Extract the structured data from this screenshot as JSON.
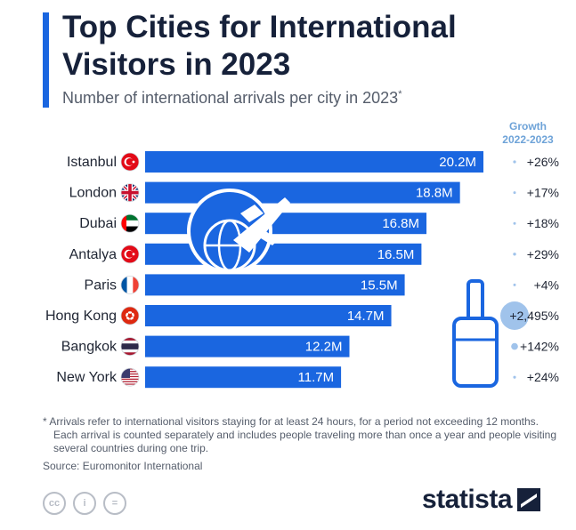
{
  "title": "Top Cities for International Visitors in 2023",
  "subtitle": "Number of international arrivals per city in 2023",
  "subtitle_marker": "*",
  "growth_header": [
    "Growth",
    "2022-2023"
  ],
  "chart_data": {
    "type": "bar",
    "orientation": "horizontal",
    "categories": [
      "Istanbul",
      "London",
      "Dubai",
      "Antalya",
      "Paris",
      "Hong Kong",
      "Bangkok",
      "New York"
    ],
    "values": [
      20.2,
      18.8,
      16.8,
      16.5,
      15.5,
      14.7,
      12.2,
      11.7
    ],
    "value_labels": [
      "20.2M",
      "18.8M",
      "16.8M",
      "16.5M",
      "15.5M",
      "14.7M",
      "12.2M",
      "11.7M"
    ],
    "growth": [
      26,
      17,
      18,
      29,
      4,
      2495,
      142,
      24
    ],
    "growth_labels": [
      "+26%",
      "+17%",
      "+18%",
      "+29%",
      "+4%",
      "+2,495%",
      "+142%",
      "+24%"
    ],
    "unit": "M",
    "bar_color": "#1a66e0",
    "growth_dot_color": "#8fb8e8",
    "flag_icons": [
      "turkey-flag-icon",
      "uk-flag-icon",
      "uae-flag-icon",
      "turkey-flag-icon",
      "france-flag-icon",
      "hong-kong-flag-icon",
      "thailand-flag-icon",
      "usa-flag-icon"
    ]
  },
  "footnote": "* Arrivals refer to international visitors staying for at least 24 hours, for a period not exceeding 12 months. Each arrival is counted separately and includes people traveling more than once a year and people visiting several countries during one trip.",
  "source": "Source: Euromonitor International",
  "license_icons": [
    "cc-icon",
    "attribution-icon",
    "no-derivatives-icon"
  ],
  "license_glyphs": [
    "cc",
    "i",
    "="
  ],
  "brand": "statista",
  "colors": {
    "accent": "#1a66e0",
    "title": "#16213a",
    "muted": "#555d6b",
    "growth_header": "#6ea3d8"
  }
}
